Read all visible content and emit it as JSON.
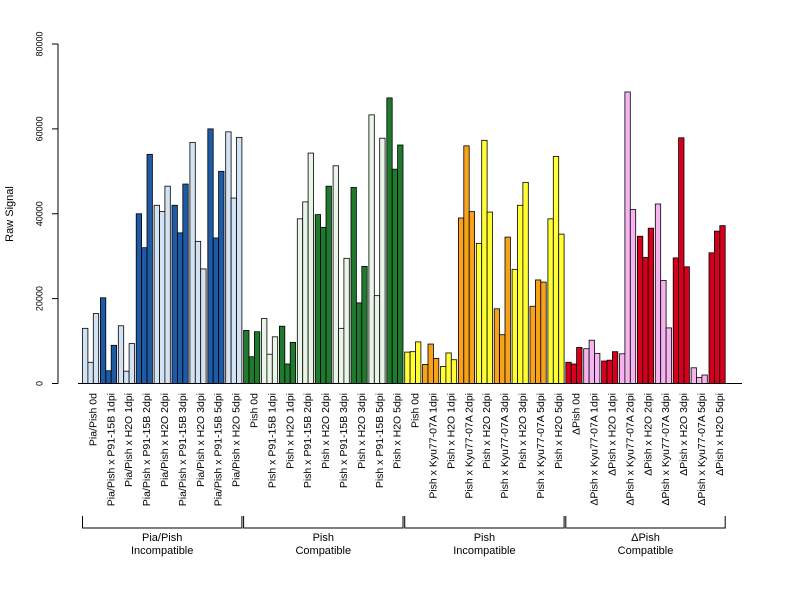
{
  "chart_data": {
    "type": "bar",
    "ylabel": "Raw Signal",
    "ylim": [
      0,
      80000
    ],
    "yticks": [
      0,
      20000,
      40000,
      60000,
      80000
    ],
    "grid": false,
    "legend": "none",
    "categories": [
      "Pia/Pish 0d",
      "Pia/Pish x P91-15B 1dpi",
      "Pia/Pish x H2O 1dpi",
      "Pia/Pish x P91-15B 2dpi",
      "Pia/Pish x H2O 2dpi",
      "Pia/Pish x P91-15B 3dpi",
      "Pia/Pish x H2O 3dpi",
      "Pia/Pish x P91-15B 5dpi",
      "Pia/Pish x H2O 5dpi",
      "Pish 0d",
      "Pish x P91-15B 1dpi",
      "Pish x H2O 1dpi",
      "Pish x P91-15B 2dpi",
      "Pish x H2O 2dpi",
      "Pish x P91-15B 3dpi",
      "Pish x H2O 3dpi",
      "Pish x P91-15B 5dpi",
      "Pish x H2O 5dpi",
      "Pish 0d",
      "Pish x Kyu77-07A 1dpi",
      "Pish x H2O 1dpi",
      "Pish x Kyu77-07A 2dpi",
      "Pish x H2O 2dpi",
      "Pish x Kyu77-07A 3dpi",
      "Pish x H2O 3dpi",
      "Pish x Kyu77-07A 5dpi",
      "Pish x H2O 5dpi",
      "ΔPish 0d",
      "ΔPish x Kyu77-07A 1dpi",
      "ΔPish x H2O 1dpi",
      "ΔPish x Kyu77-07A 2dpi",
      "ΔPish x H2O 2dpi",
      "ΔPish x Kyu77-07A 3dpi",
      "ΔPish x H2O 3dpi",
      "ΔPish x Kyu77-07A 5dpi",
      "ΔPish x H2O 5dpi"
    ],
    "values": [
      [
        13000,
        5000,
        16500
      ],
      [
        20200,
        3000,
        9000
      ],
      [
        13600,
        2900,
        9400
      ],
      [
        40000,
        32000,
        54000
      ],
      [
        42000,
        40500,
        46500
      ],
      [
        42000,
        35500,
        47000
      ],
      [
        56800,
        33500,
        27000
      ],
      [
        60000,
        34300,
        50000
      ],
      [
        59300,
        43700,
        58000
      ],
      [
        12500,
        6300,
        12200
      ],
      [
        15300,
        6900,
        11000
      ],
      [
        13500,
        4600,
        9700
      ],
      [
        38800,
        42800,
        54300
      ],
      [
        39800,
        36800,
        46500
      ],
      [
        51300,
        13000,
        29500
      ],
      [
        46200,
        19000,
        27600
      ],
      [
        63300,
        20700,
        57800
      ],
      [
        67300,
        50500,
        56200
      ],
      [
        7400,
        7500,
        9800
      ],
      [
        4500,
        9300,
        5900
      ],
      [
        4000,
        7200,
        5600
      ],
      [
        39000,
        56000,
        40500
      ],
      [
        33000,
        57300,
        40400
      ],
      [
        17600,
        11500,
        34500
      ],
      [
        26900,
        42000,
        47400
      ],
      [
        18200,
        24400,
        23900
      ],
      [
        38800,
        53500,
        35200
      ],
      [
        5000,
        4600,
        8500
      ],
      [
        8200,
        10200,
        7100
      ],
      [
        5300,
        5500,
        7500
      ],
      [
        7000,
        68700,
        41000
      ],
      [
        34700,
        29700,
        36600
      ],
      [
        42300,
        24300,
        13100
      ],
      [
        29600,
        57900,
        27500
      ],
      [
        3700,
        1400,
        2000
      ],
      [
        30800,
        35900,
        37200
      ]
    ],
    "group_colors": [
      "#1f5aa6",
      "#d4e3f3",
      "#1f7a2e",
      "#e9f5e6",
      "#f7a21a",
      "#ffff33",
      "#d7001c",
      "#f5b4f0"
    ],
    "groups": [
      {
        "line1": "Pia/Pish",
        "line2": "Incompatible",
        "from": 0,
        "to": 8
      },
      {
        "line1": "Pish",
        "line2": "Compatible",
        "from": 9,
        "to": 17
      },
      {
        "line1": "Pish",
        "line2": "Incompatible",
        "from": 18,
        "to": 26
      },
      {
        "line1": "ΔPish",
        "line2": "Compatible",
        "from": 27,
        "to": 35
      }
    ]
  }
}
